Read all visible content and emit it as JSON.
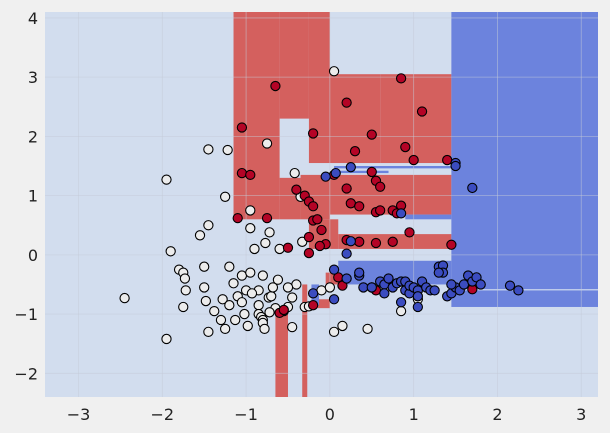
{
  "chart_data": {
    "type": "scatter",
    "title": "",
    "xlabel": "",
    "ylabel": "",
    "xlim": [
      -3.4,
      3.2
    ],
    "ylim": [
      -2.4,
      4.1
    ],
    "grid": true,
    "x_ticks": [
      -3,
      -2,
      -1,
      0,
      1,
      2,
      3
    ],
    "y_ticks": [
      -2,
      -1,
      0,
      1,
      2,
      3,
      4
    ],
    "x_tick_labels": [
      "−3",
      "−2",
      "−1",
      "0",
      "1",
      "2",
      "3"
    ],
    "y_tick_labels": [
      "−2",
      "−1",
      "0",
      "1",
      "2",
      "3",
      "4"
    ],
    "colors": {
      "figure_bg": "#f0f0f0",
      "region_light": "#d2ddee",
      "region_red": "#d4605e",
      "region_blue": "#6c83dd",
      "class_white": "#ececec",
      "class_red": "#b40426",
      "class_blue": "#3b4cc0",
      "grid": "#c4ccd8"
    },
    "decision_regions": [
      {
        "class": "red",
        "x": [
          -1.15,
          -0.6
        ],
        "y": [
          0.6,
          4.1
        ]
      },
      {
        "class": "red",
        "x": [
          -0.6,
          -0.25
        ],
        "y": [
          2.3,
          4.1
        ]
      },
      {
        "class": "red",
        "x": [
          -0.25,
          0.0
        ],
        "y": [
          1.55,
          4.1
        ]
      },
      {
        "class": "red",
        "x": [
          0.0,
          0.6
        ],
        "y": [
          1.55,
          3.05
        ]
      },
      {
        "class": "red",
        "x": [
          0.6,
          1.45
        ],
        "y": [
          1.55,
          3.05
        ]
      },
      {
        "class": "red",
        "x": [
          -0.6,
          -0.35
        ],
        "y": [
          0.6,
          1.3
        ]
      },
      {
        "class": "red",
        "x": [
          -0.35,
          0.0
        ],
        "y": [
          0.6,
          1.35
        ]
      },
      {
        "class": "red",
        "x": [
          0.0,
          1.45
        ],
        "y": [
          0.68,
          1.35
        ]
      },
      {
        "class": "red",
        "x": [
          -0.25,
          0.1
        ],
        "y": [
          0.1,
          0.6
        ]
      },
      {
        "class": "red",
        "x": [
          0.1,
          1.45
        ],
        "y": [
          0.1,
          0.35
        ]
      },
      {
        "class": "red",
        "x": [
          -0.65,
          -0.5
        ],
        "y": [
          -2.4,
          -0.9
        ]
      },
      {
        "class": "red",
        "x": [
          -0.33,
          -0.27
        ],
        "y": [
          -2.4,
          -0.5
        ]
      },
      {
        "class": "red",
        "x": [
          -0.2,
          0.0
        ],
        "y": [
          -0.9,
          -0.75
        ]
      },
      {
        "class": "red",
        "x": [
          -0.05,
          0.2
        ],
        "y": [
          -0.5,
          -0.3
        ]
      },
      {
        "class": "blue",
        "x": [
          1.45,
          3.2
        ],
        "y": [
          -0.88,
          4.1
        ]
      },
      {
        "class": "blue",
        "x": [
          0.1,
          1.45
        ],
        "y": [
          -0.5,
          -0.1
        ]
      },
      {
        "class": "blue",
        "x": [
          0.05,
          0.7
        ],
        "y": [
          1.38,
          1.42
        ]
      },
      {
        "class": "blue",
        "x": [
          0.05,
          1.45
        ],
        "y": [
          1.46,
          1.5
        ]
      },
      {
        "class": "blue",
        "x": [
          0.9,
          1.45
        ],
        "y": [
          0.6,
          0.68
        ]
      },
      {
        "class": "blue",
        "x": [
          -0.22,
          -0.13
        ],
        "y": [
          -0.85,
          -0.5
        ]
      },
      {
        "class": "light",
        "x": [
          1.45,
          3.2
        ],
        "y": [
          -0.6,
          -0.58
        ]
      }
    ],
    "series": [
      {
        "class": "white",
        "points": [
          [
            -2.45,
            -0.73
          ],
          [
            -1.95,
            1.27
          ],
          [
            -1.95,
            -1.42
          ],
          [
            -1.9,
            0.06
          ],
          [
            -1.8,
            -0.25
          ],
          [
            -1.75,
            -0.3
          ],
          [
            -1.73,
            -0.4
          ],
          [
            -1.72,
            -0.6
          ],
          [
            -1.75,
            -0.88
          ],
          [
            -1.55,
            0.33
          ],
          [
            -1.5,
            -0.2
          ],
          [
            -1.5,
            -0.55
          ],
          [
            -1.48,
            -0.78
          ],
          [
            -1.45,
            1.78
          ],
          [
            -1.45,
            0.5
          ],
          [
            -1.45,
            -1.3
          ],
          [
            -1.3,
            -1.1
          ],
          [
            -1.28,
            -0.75
          ],
          [
            -1.25,
            -1.25
          ],
          [
            -1.25,
            0.98
          ],
          [
            -1.22,
            1.77
          ],
          [
            -1.2,
            -0.2
          ],
          [
            -1.2,
            -0.85
          ],
          [
            -1.15,
            -0.48
          ],
          [
            -1.13,
            -1.1
          ],
          [
            -1.1,
            -0.7
          ],
          [
            -1.05,
            -0.8
          ],
          [
            -1.02,
            -1.0
          ],
          [
            -1.0,
            -0.6
          ],
          [
            -0.95,
            0.75
          ],
          [
            -0.95,
            0.45
          ],
          [
            -0.9,
            0.1
          ],
          [
            -0.85,
            -0.85
          ],
          [
            -0.85,
            -1.0
          ],
          [
            -0.82,
            -1.05
          ],
          [
            -0.8,
            -1.1
          ],
          [
            -0.8,
            -1.15
          ],
          [
            -0.78,
            -1.25
          ],
          [
            -0.77,
            0.2
          ],
          [
            -0.75,
            1.88
          ],
          [
            -0.73,
            -0.72
          ],
          [
            -0.7,
            -0.7
          ],
          [
            -0.68,
            -0.55
          ],
          [
            -0.65,
            -0.9
          ],
          [
            -0.6,
            0.1
          ],
          [
            -0.55,
            -0.95
          ],
          [
            -0.5,
            -0.88
          ],
          [
            -0.45,
            -0.72
          ],
          [
            -0.42,
            1.38
          ],
          [
            -0.4,
            -0.5
          ],
          [
            -0.35,
            0.98
          ],
          [
            -0.33,
            0.22
          ],
          [
            -0.3,
            -0.88
          ],
          [
            -0.25,
            -0.87
          ],
          [
            -0.1,
            -0.6
          ],
          [
            0.0,
            -0.55
          ],
          [
            0.05,
            3.1
          ],
          [
            0.15,
            -1.2
          ],
          [
            0.45,
            -1.25
          ],
          [
            0.05,
            -1.3
          ],
          [
            0.85,
            -0.95
          ],
          [
            1.05,
            -0.75
          ],
          [
            -0.85,
            -0.6
          ],
          [
            -0.62,
            -0.42
          ],
          [
            -1.05,
            -0.35
          ],
          [
            -0.95,
            -0.3
          ],
          [
            -0.8,
            -0.35
          ],
          [
            -0.98,
            -1.2
          ],
          [
            -0.72,
            -0.97
          ],
          [
            -0.45,
            -1.22
          ],
          [
            -1.38,
            -0.95
          ],
          [
            -0.72,
            0.38
          ],
          [
            -0.93,
            -0.65
          ],
          [
            -0.5,
            -0.55
          ]
        ]
      },
      {
        "class": "red",
        "points": [
          [
            -0.65,
            2.85
          ],
          [
            0.85,
            2.98
          ],
          [
            0.2,
            2.57
          ],
          [
            1.1,
            2.42
          ],
          [
            -1.05,
            2.15
          ],
          [
            -0.2,
            2.05
          ],
          [
            0.5,
            2.03
          ],
          [
            0.3,
            1.75
          ],
          [
            0.9,
            1.82
          ],
          [
            1.0,
            1.6
          ],
          [
            1.4,
            1.6
          ],
          [
            -1.05,
            1.38
          ],
          [
            -0.95,
            1.35
          ],
          [
            0.5,
            1.4
          ],
          [
            0.55,
            1.25
          ],
          [
            0.6,
            1.15
          ],
          [
            0.2,
            1.12
          ],
          [
            -0.4,
            1.1
          ],
          [
            -0.3,
            1.0
          ],
          [
            -0.25,
            0.9
          ],
          [
            -0.2,
            0.82
          ],
          [
            0.25,
            0.87
          ],
          [
            0.35,
            0.82
          ],
          [
            0.55,
            0.72
          ],
          [
            0.6,
            0.75
          ],
          [
            0.75,
            0.75
          ],
          [
            0.85,
            0.83
          ],
          [
            -0.2,
            0.58
          ],
          [
            -0.15,
            0.6
          ],
          [
            -0.1,
            0.42
          ],
          [
            -1.1,
            0.62
          ],
          [
            -0.75,
            0.62
          ],
          [
            -0.25,
            0.3
          ],
          [
            -0.5,
            0.12
          ],
          [
            -0.25,
            0.03
          ],
          [
            0.2,
            0.25
          ],
          [
            0.35,
            0.22
          ],
          [
            0.55,
            0.2
          ],
          [
            0.75,
            0.22
          ],
          [
            0.95,
            0.38
          ],
          [
            1.45,
            0.17
          ],
          [
            0.1,
            -0.38
          ],
          [
            0.15,
            -0.52
          ],
          [
            0.5,
            -0.55
          ],
          [
            0.55,
            -0.6
          ],
          [
            1.7,
            -0.58
          ],
          [
            -0.2,
            -0.85
          ],
          [
            -0.6,
            -0.98
          ],
          [
            -0.55,
            -0.93
          ],
          [
            -0.05,
            0.18
          ],
          [
            -0.12,
            0.15
          ],
          [
            0.8,
            0.7
          ],
          [
            0.05,
            1.35
          ]
        ]
      },
      {
        "class": "blue",
        "points": [
          [
            1.5,
            1.55
          ],
          [
            1.5,
            1.5
          ],
          [
            1.7,
            1.13
          ],
          [
            0.25,
            1.48
          ],
          [
            0.07,
            1.38
          ],
          [
            0.85,
            0.7
          ],
          [
            -0.05,
            1.32
          ],
          [
            0.25,
            0.23
          ],
          [
            0.2,
            0.02
          ],
          [
            0.05,
            -0.25
          ],
          [
            0.2,
            -0.4
          ],
          [
            0.35,
            -0.35
          ],
          [
            0.4,
            -0.55
          ],
          [
            0.5,
            -0.55
          ],
          [
            0.6,
            -0.45
          ],
          [
            0.65,
            -0.5
          ],
          [
            0.7,
            -0.4
          ],
          [
            0.75,
            -0.55
          ],
          [
            0.8,
            -0.48
          ],
          [
            0.85,
            -0.45
          ],
          [
            0.9,
            -0.45
          ],
          [
            0.9,
            -0.6
          ],
          [
            0.95,
            -0.65
          ],
          [
            0.95,
            -0.52
          ],
          [
            1.0,
            -0.55
          ],
          [
            1.05,
            -0.6
          ],
          [
            1.05,
            -0.7
          ],
          [
            1.1,
            -0.45
          ],
          [
            1.15,
            -0.55
          ],
          [
            1.2,
            -0.6
          ],
          [
            1.25,
            -0.6
          ],
          [
            1.3,
            -0.2
          ],
          [
            1.35,
            -0.18
          ],
          [
            1.35,
            -0.3
          ],
          [
            1.4,
            -0.7
          ],
          [
            1.45,
            -0.65
          ],
          [
            1.5,
            -0.55
          ],
          [
            1.55,
            -0.6
          ],
          [
            1.6,
            -0.5
          ],
          [
            1.65,
            -0.35
          ],
          [
            1.7,
            -0.45
          ],
          [
            1.75,
            -0.38
          ],
          [
            1.8,
            -0.5
          ],
          [
            2.15,
            -0.52
          ],
          [
            2.25,
            -0.6
          ],
          [
            0.65,
            -0.65
          ],
          [
            0.85,
            -0.8
          ],
          [
            1.05,
            -0.88
          ],
          [
            -0.2,
            -0.65
          ],
          [
            0.05,
            -0.75
          ],
          [
            0.35,
            -0.3
          ],
          [
            1.3,
            -0.3
          ],
          [
            1.45,
            -0.5
          ]
        ]
      }
    ]
  }
}
